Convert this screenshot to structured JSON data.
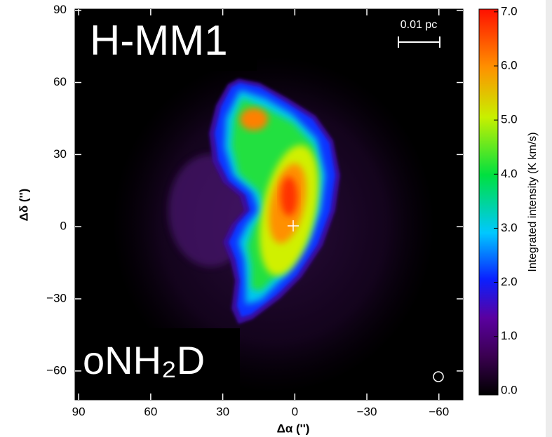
{
  "chart_data": {
    "type": "image",
    "title": "H-MM1",
    "annotations": [
      "oNH₂D",
      "0.01 pc"
    ],
    "x_label": "Δα ('')",
    "y_label": "Δδ ('')",
    "xlim": [
      91.5,
      -70
    ],
    "ylim": [
      -72,
      90.5
    ],
    "xticks": [
      90,
      60,
      30,
      0,
      {
        "value": -30,
        "label": "−30"
      },
      {
        "value": -60,
        "label": "−60"
      }
    ],
    "yticks": [
      {
        "value": -60,
        "label": "−60"
      },
      {
        "value": -30,
        "label": "−30"
      },
      0,
      30,
      60,
      90
    ],
    "colorbar": {
      "label": "Integrated intensity (K km/s)",
      "lim": [
        -0.08,
        7.05
      ],
      "ticks": [
        {
          "value": 0,
          "label": "0.0"
        },
        {
          "value": 1,
          "label": "1.0"
        },
        {
          "value": 2,
          "label": "2.0"
        },
        {
          "value": 3,
          "label": "3.0"
        },
        {
          "value": 4,
          "label": "4.0"
        },
        {
          "value": 5,
          "label": "5.0"
        },
        {
          "value": 6,
          "label": "6.0"
        },
        {
          "value": 7,
          "label": "7.0"
        }
      ]
    }
  }
}
